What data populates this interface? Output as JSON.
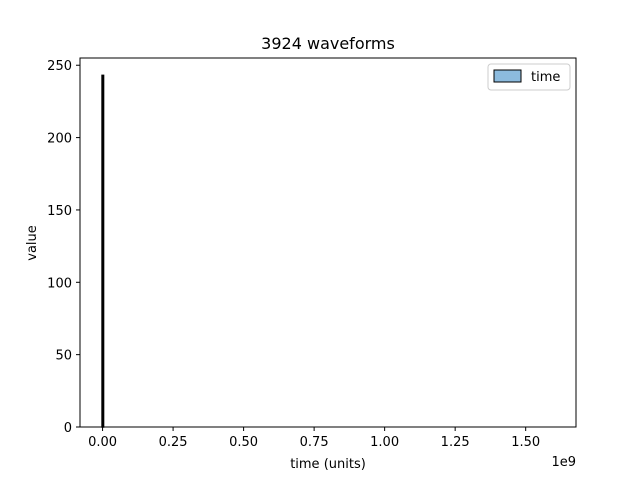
{
  "chart_data": {
    "type": "bar",
    "title": "3924 waveforms",
    "xlabel": "time (units)",
    "ylabel": "value",
    "x_offset_text": "1e9",
    "xlim": [
      -0.08,
      1.6784
    ],
    "ylim": [
      0,
      255
    ],
    "x_ticks": [
      0,
      0.25,
      0.5,
      0.75,
      1.0,
      1.25,
      1.5
    ],
    "x_tick_labels": [
      "0.00",
      "0.25",
      "0.50",
      "0.75",
      "1.00",
      "1.25",
      "1.50"
    ],
    "y_ticks": [
      0,
      50,
      100,
      150,
      200,
      250
    ],
    "y_tick_labels": [
      "0",
      "50",
      "100",
      "150",
      "200",
      "250"
    ],
    "series": [
      {
        "name": "time",
        "color": "#8cbbde",
        "edgecolor": "#000000",
        "bins": [
          {
            "x0": 0.0,
            "x1": 0.0006,
            "value": 243
          }
        ]
      }
    ],
    "legend": {
      "position": "top-right",
      "entries": [
        "time"
      ]
    },
    "grid": false
  }
}
